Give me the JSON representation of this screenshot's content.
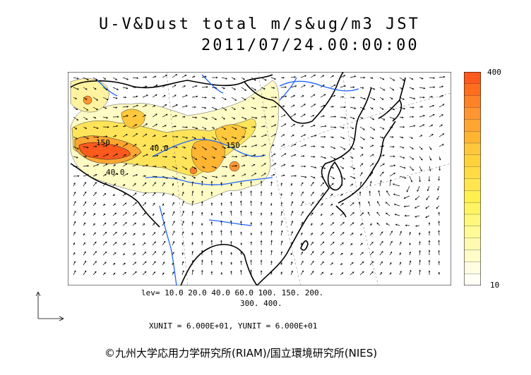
{
  "title": {
    "line1": "U-V&Dust total m/s&ug/m3 JST",
    "line2": "2011/07/24.00:00:00"
  },
  "colorbar": {
    "max_label": "400",
    "min_label": "10",
    "colors": [
      "#ff5a1e",
      "#ff6e1e",
      "#ff8228",
      "#ff9632",
      "#ffa532",
      "#ffb432",
      "#ffc83c",
      "#ffd23c",
      "#ffdc46",
      "#ffe650",
      "#fff050",
      "#fff564",
      "#fff87d",
      "#fffa96",
      "#fffaaf",
      "#fffcc8",
      "#fffde1",
      "#fffff5"
    ]
  },
  "levels": {
    "line1": "lev= 10.0 20.0 40.0 60.0 100. 150. 200.",
    "line2": "300. 400."
  },
  "units_text": "XUNIT = 6.000E+01, YUNIT = 6.000E+01",
  "contour_labels": [
    "150",
    "40.0",
    "40.0",
    "150"
  ],
  "credit": "©九州大学応用力学研究所(RIAM)/国立環境研究所(NIES)",
  "map": {
    "region": "East Asia",
    "land_outline_color": "#000000",
    "river_color": "#1e64ff",
    "grid_line_style": "dashed"
  }
}
